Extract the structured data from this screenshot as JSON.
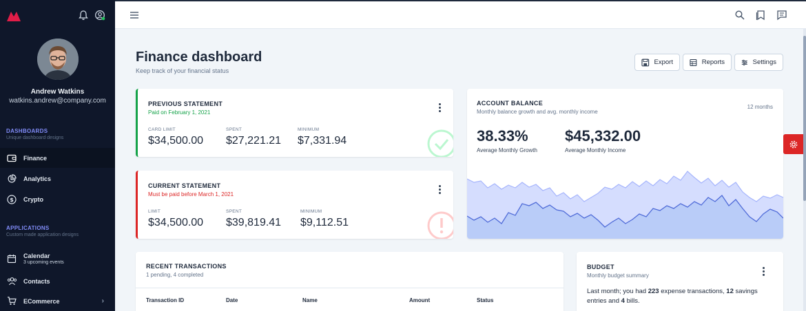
{
  "sidebar": {
    "user": {
      "name": "Andrew Watkins",
      "email": "watkins.andrew@company.com"
    },
    "dashboards": {
      "title": "DASHBOARDS",
      "subtitle": "Unique dashboard designs",
      "items": [
        {
          "label": "Finance",
          "icon": "wallet-icon"
        },
        {
          "label": "Analytics",
          "icon": "pie-chart-icon"
        },
        {
          "label": "Crypto",
          "icon": "dollar-circle-icon"
        }
      ]
    },
    "applications": {
      "title": "APPLICATIONS",
      "subtitle": "Custom made application designs",
      "items": [
        {
          "label": "Calendar",
          "sublabel": "3 upcoming events",
          "icon": "calendar-icon"
        },
        {
          "label": "Contacts",
          "icon": "users-icon"
        },
        {
          "label": "ECommerce",
          "icon": "cart-icon"
        }
      ]
    }
  },
  "header": {
    "title": "Finance dashboard",
    "subtitle": "Keep track of your financial status",
    "buttons": {
      "export": "Export",
      "reports": "Reports",
      "settings": "Settings"
    }
  },
  "previous_statement": {
    "title": "PREVIOUS STATEMENT",
    "subtitle": "Paid on February 1, 2021",
    "stats": [
      {
        "label": "CARD LIMIT",
        "value": "$34,500.00"
      },
      {
        "label": "SPENT",
        "value": "$27,221.21"
      },
      {
        "label": "MINIMUM",
        "value": "$7,331.94"
      }
    ]
  },
  "current_statement": {
    "title": "CURRENT STATEMENT",
    "subtitle": "Must be paid before March 1, 2021",
    "stats": [
      {
        "label": "LIMIT",
        "value": "$34,500.00"
      },
      {
        "label": "SPENT",
        "value": "$39,819.41"
      },
      {
        "label": "MINIMUM",
        "value": "$9,112.51"
      }
    ]
  },
  "account_balance": {
    "title": "ACCOUNT BALANCE",
    "subtitle": "Monthly balance growth and avg. monthly income",
    "period": "12 months",
    "growth": {
      "value": "38.33%",
      "label": "Average Monthly Growth"
    },
    "income": {
      "value": "$45,332.00",
      "label": "Average Monthly Income"
    }
  },
  "recent_transactions": {
    "title": "RECENT TRANSACTIONS",
    "subtitle": "1 pending, 4 completed",
    "columns": [
      "Transaction ID",
      "Date",
      "Name",
      "Amount",
      "Status"
    ]
  },
  "budget": {
    "title": "BUDGET",
    "subtitle": "Monthly budget summary",
    "text_1": "Last month; you had ",
    "expense_count": "223",
    "text_2": " expense transactions, ",
    "savings_count": "12",
    "text_3": " savings entries and ",
    "bills_count": "4",
    "text_4": " bills."
  },
  "colors": {
    "sidebar_bg": "#0f172a",
    "accent": "#818cf8",
    "success": "#16a34a",
    "danger": "#dc2626",
    "chart_fill": "#c7d7f5"
  }
}
